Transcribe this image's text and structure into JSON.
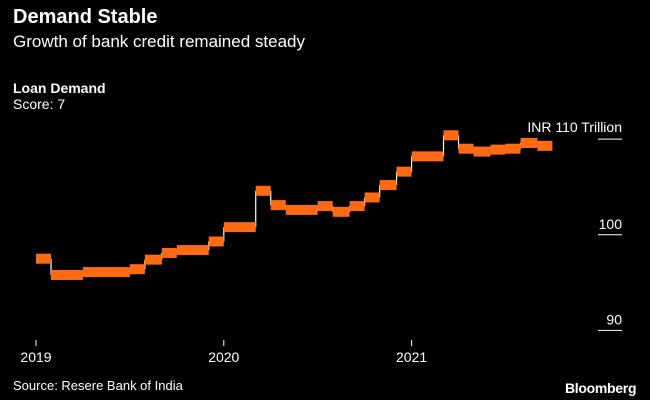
{
  "header": {
    "title": "Demand Stable",
    "subtitle": "Growth of bank credit remained steady"
  },
  "panel": {
    "title": "Loan Demand",
    "score": "Score: 7"
  },
  "footer": {
    "source": "Source: Resere Bank of India",
    "brand": "Bloomberg"
  },
  "colors": {
    "background": "#000000",
    "series": "#ff6a13",
    "connector": "#ffffff",
    "text": "#ffffff"
  },
  "chart_data": {
    "type": "line",
    "title": "Loan Demand",
    "xlabel": "",
    "ylabel": "INR Trillion",
    "unit_label": "INR 110  Trillion",
    "xlim": [
      2019.0,
      2021.95
    ],
    "ylim": [
      89,
      112
    ],
    "x_ticks": [
      {
        "value": 2019,
        "label": "2019"
      },
      {
        "value": 2020,
        "label": "2020"
      },
      {
        "value": 2021,
        "label": "2021"
      }
    ],
    "y_ticks": [
      {
        "value": 100,
        "label": "100"
      },
      {
        "value": 90,
        "label": "90"
      }
    ],
    "y_top_tick": 110,
    "series": [
      {
        "name": "Loan Demand",
        "steps": [
          {
            "x0": 2019.0,
            "x1": 2019.08,
            "y": 97.5
          },
          {
            "x0": 2019.08,
            "x1": 2019.25,
            "y": 95.8
          },
          {
            "x0": 2019.25,
            "x1": 2019.5,
            "y": 96.1
          },
          {
            "x0": 2019.5,
            "x1": 2019.58,
            "y": 96.4
          },
          {
            "x0": 2019.58,
            "x1": 2019.67,
            "y": 97.4
          },
          {
            "x0": 2019.67,
            "x1": 2019.75,
            "y": 98.1
          },
          {
            "x0": 2019.75,
            "x1": 2019.92,
            "y": 98.4
          },
          {
            "x0": 2019.92,
            "x1": 2020.0,
            "y": 99.3
          },
          {
            "x0": 2020.0,
            "x1": 2020.17,
            "y": 100.8
          },
          {
            "x0": 2020.17,
            "x1": 2020.25,
            "y": 104.6
          },
          {
            "x0": 2020.25,
            "x1": 2020.33,
            "y": 103.1
          },
          {
            "x0": 2020.33,
            "x1": 2020.5,
            "y": 102.6
          },
          {
            "x0": 2020.5,
            "x1": 2020.58,
            "y": 103.0
          },
          {
            "x0": 2020.58,
            "x1": 2020.67,
            "y": 102.4
          },
          {
            "x0": 2020.67,
            "x1": 2020.75,
            "y": 103.0
          },
          {
            "x0": 2020.75,
            "x1": 2020.83,
            "y": 103.9
          },
          {
            "x0": 2020.83,
            "x1": 2020.92,
            "y": 105.2
          },
          {
            "x0": 2020.92,
            "x1": 2021.0,
            "y": 106.6
          },
          {
            "x0": 2021.0,
            "x1": 2021.17,
            "y": 108.2
          },
          {
            "x0": 2021.17,
            "x1": 2021.25,
            "y": 110.4
          },
          {
            "x0": 2021.25,
            "x1": 2021.33,
            "y": 109.0
          },
          {
            "x0": 2021.33,
            "x1": 2021.42,
            "y": 108.7
          },
          {
            "x0": 2021.42,
            "x1": 2021.5,
            "y": 108.9
          },
          {
            "x0": 2021.5,
            "x1": 2021.58,
            "y": 109.0
          },
          {
            "x0": 2021.58,
            "x1": 2021.67,
            "y": 109.6
          },
          {
            "x0": 2021.67,
            "x1": 2021.75,
            "y": 109.3
          }
        ]
      }
    ],
    "grid": false,
    "legend": "none"
  }
}
